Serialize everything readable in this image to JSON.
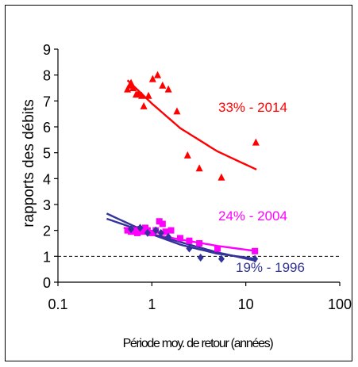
{
  "chart_data": {
    "type": "scatter",
    "title": "",
    "xlabel": "Période moy. de retour (années)",
    "ylabel": "rapports des débits",
    "x_scale": "log",
    "xlim": [
      0.1,
      100
    ],
    "ylim": [
      0,
      9
    ],
    "x_ticks": [
      "0.1",
      "1",
      "10",
      "100"
    ],
    "y_ticks": [
      "0",
      "1",
      "2",
      "3",
      "4",
      "5",
      "6",
      "7",
      "8",
      "9"
    ],
    "grid": false,
    "legend": "none",
    "reference_line": {
      "y": 1,
      "style": "dashed",
      "color": "#000000"
    },
    "series": [
      {
        "label": "33% - 2014",
        "color": "#ff0000",
        "marker": "triangle",
        "points": [
          [
            0.55,
            7.45
          ],
          [
            0.58,
            7.6
          ],
          [
            0.6,
            7.7
          ],
          [
            0.63,
            7.5
          ],
          [
            0.68,
            7.25
          ],
          [
            0.72,
            7.3
          ],
          [
            0.78,
            7.2
          ],
          [
            0.82,
            6.8
          ],
          [
            0.92,
            7.2
          ],
          [
            1.02,
            7.85
          ],
          [
            1.15,
            8.0
          ],
          [
            1.3,
            7.6
          ],
          [
            1.5,
            7.45
          ],
          [
            1.85,
            6.6
          ],
          [
            2.4,
            4.9
          ],
          [
            3.2,
            4.4
          ],
          [
            5.5,
            4.05
          ],
          [
            12.8,
            5.4
          ]
        ],
        "trend": [
          [
            0.55,
            7.8
          ],
          [
            1,
            6.9
          ],
          [
            2,
            5.95
          ],
          [
            5,
            5.05
          ],
          [
            13,
            4.35
          ]
        ]
      },
      {
        "label": "24% - 2004",
        "color": "#ff00ff",
        "marker": "square",
        "points": [
          [
            0.55,
            2.0
          ],
          [
            0.6,
            1.95
          ],
          [
            0.65,
            2.0
          ],
          [
            0.7,
            1.9
          ],
          [
            0.75,
            2.05
          ],
          [
            0.8,
            1.95
          ],
          [
            0.85,
            2.1
          ],
          [
            0.9,
            2.0
          ],
          [
            1.0,
            1.9
          ],
          [
            1.1,
            2.0
          ],
          [
            1.2,
            2.35
          ],
          [
            1.3,
            2.25
          ],
          [
            1.4,
            1.95
          ],
          [
            1.6,
            2.0
          ],
          [
            2.0,
            1.7
          ],
          [
            2.5,
            1.6
          ],
          [
            3.2,
            1.5
          ],
          [
            5.0,
            1.3
          ],
          [
            12.5,
            1.2
          ]
        ],
        "trend": [
          [
            0.5,
            2.1
          ],
          [
            1,
            1.85
          ],
          [
            2,
            1.65
          ],
          [
            5,
            1.4
          ],
          [
            13,
            1.2
          ]
        ]
      },
      {
        "label": "19% - 1996",
        "color": "#333399",
        "marker": "diamond",
        "points": [
          [
            0.6,
            2.05
          ],
          [
            0.75,
            2.1
          ],
          [
            0.9,
            1.9
          ],
          [
            1.1,
            2.0
          ],
          [
            1.25,
            1.9
          ],
          [
            1.5,
            1.75
          ],
          [
            2.5,
            1.3
          ],
          [
            3.3,
            0.95
          ],
          [
            5.5,
            0.9
          ],
          [
            12.5,
            0.9
          ]
        ],
        "trend": [
          [
            0.33,
            2.65
          ],
          [
            1,
            1.85
          ],
          [
            2,
            1.45
          ],
          [
            5,
            1.1
          ],
          [
            13,
            0.9
          ]
        ]
      },
      {
        "label": "",
        "color": "#333399",
        "marker": "none",
        "points": [],
        "trend": [
          [
            0.33,
            2.45
          ],
          [
            1,
            1.85
          ],
          [
            2,
            1.55
          ],
          [
            5,
            1.15
          ],
          [
            13,
            0.82
          ]
        ]
      }
    ]
  }
}
